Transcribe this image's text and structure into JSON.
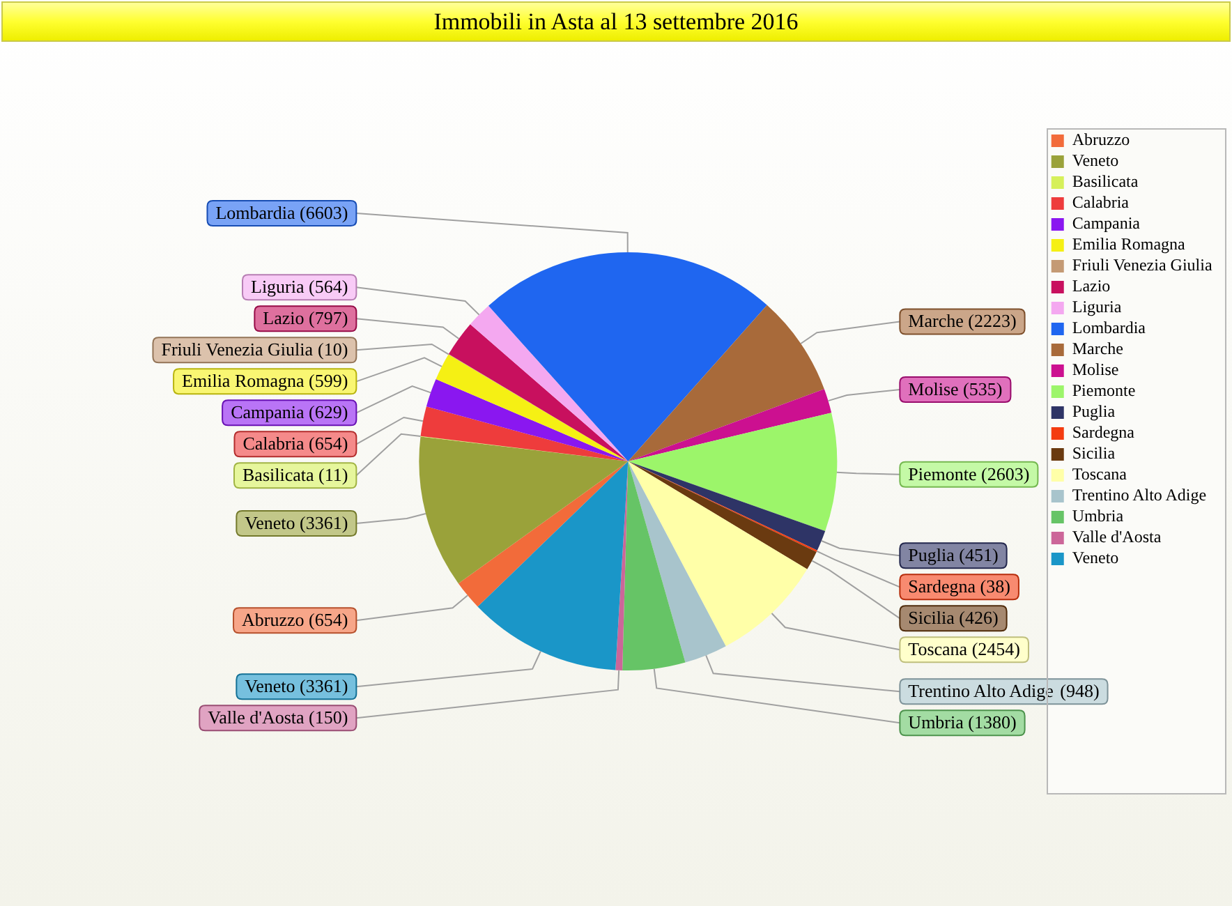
{
  "chart_data": {
    "type": "pie",
    "title": "Immobili in Asta al 13 settembre 2016",
    "categories": [
      "Abruzzo",
      "Veneto",
      "Basilicata",
      "Calabria",
      "Campania",
      "Emilia Romagna",
      "Friuli Venezia Giulia",
      "Lazio",
      "Liguria",
      "Lombardia",
      "Marche",
      "Molise",
      "Piemonte",
      "Puglia",
      "Sardegna",
      "Sicilia",
      "Toscana",
      "Trentino Alto Adige",
      "Umbria",
      "Valle d'Aosta",
      "Veneto"
    ],
    "values": [
      654,
      3361,
      11,
      654,
      629,
      599,
      10,
      797,
      564,
      6603,
      2223,
      535,
      2603,
      451,
      38,
      426,
      2454,
      948,
      1380,
      150,
      3361
    ],
    "value_labels": [
      "(654)",
      "(3361)",
      "(11)",
      "(654)",
      "(629)",
      "(599)",
      "(10)",
      "(797)",
      "(564)",
      "(6603)",
      "(2223)",
      "(535)",
      "(2603)",
      "(451)",
      "(38)",
      "(426)",
      "(2454)",
      "(948)",
      "(1380)",
      "(150)",
      "(3361)"
    ],
    "colors": [
      "#f26b3a",
      "#9aa23a",
      "#d6f05a",
      "#ee3c3c",
      "#8a17f0",
      "#f5f014",
      "#c49a74",
      "#c8105e",
      "#f4a8f0",
      "#1f66f0",
      "#a86a3a",
      "#cc1090",
      "#9cf56a",
      "#2e3466",
      "#f43c10",
      "#6a3a10",
      "#ffffa8",
      "#a8c4cc",
      "#66c466",
      "#cc6699",
      "#1a96c8"
    ],
    "legend": "right"
  }
}
